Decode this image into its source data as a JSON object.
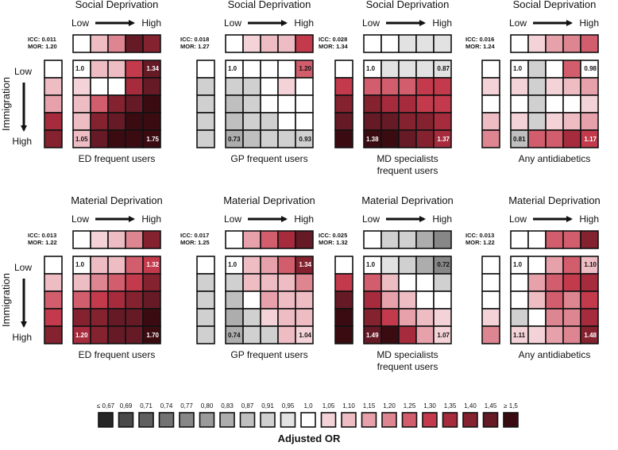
{
  "chart_data": {
    "type": "heatmap",
    "row_axis_label": "Immigration",
    "row_low_label": "Low",
    "row_high_label": "High",
    "col_low_label": "Low",
    "col_high_label": "High",
    "legend": {
      "title": "Adjusted OR",
      "labels": [
        "≤ 0,67",
        "0,69",
        "0,71",
        "0,74",
        "0,77",
        "0,80",
        "0,83",
        "0,87",
        "0,91",
        "0,95",
        "1,0",
        "1,05",
        "1,10",
        "1,15",
        "1,20",
        "1,25",
        "1,30",
        "1,35",
        "1,40",
        "1,45",
        "≥ 1,5"
      ],
      "colors": [
        "#262626",
        "#4a4a4a",
        "#5f5f5f",
        "#737373",
        "#878787",
        "#9a9a9a",
        "#adadad",
        "#bfbfbf",
        "#d0d0d0",
        "#e2e2e2",
        "#ffffff",
        "#f4d3d8",
        "#eebcc3",
        "#e6a1ab",
        "#dd8590",
        "#d25d6c",
        "#c33a4c",
        "#a62c3d",
        "#852230",
        "#651a26",
        "#3a0c12"
      ]
    },
    "panels": [
      {
        "deprivation": "Social Deprivation",
        "outcome": [
          "ED frequent users"
        ],
        "icc_label": "ICC:",
        "icc": "0.011",
        "mor_label": "MOR:",
        "mor": "1.20",
        "top": [
          10,
          12,
          14,
          19,
          18
        ],
        "left": [
          10,
          12,
          13,
          17,
          18
        ],
        "grid": [
          [
            10,
            12,
            12,
            16,
            19
          ],
          [
            11,
            10,
            10,
            17,
            19
          ],
          [
            12,
            15,
            18,
            19,
            20
          ],
          [
            12,
            18,
            19,
            20,
            20
          ],
          [
            12,
            19,
            20,
            20,
            20
          ]
        ],
        "labels": [
          {
            "r": 0,
            "c": 0,
            "t": "1.0"
          },
          {
            "r": 0,
            "c": 4,
            "t": "1.34"
          },
          {
            "r": 4,
            "c": 0,
            "t": "1.05"
          },
          {
            "r": 4,
            "c": 4,
            "t": "1.75"
          }
        ]
      },
      {
        "deprivation": "Social Deprivation",
        "outcome": [
          "GP frequent users"
        ],
        "icc_label": "ICC:",
        "icc": "0.018",
        "mor_label": "MOR:",
        "mor": "1.27",
        "top": [
          10,
          11,
          12,
          12,
          16
        ],
        "left": [
          10,
          8,
          8,
          8,
          8
        ],
        "grid": [
          [
            10,
            10,
            10,
            10,
            15
          ],
          [
            8,
            8,
            10,
            11,
            10
          ],
          [
            7,
            8,
            10,
            10,
            10
          ],
          [
            7,
            8,
            8,
            10,
            10
          ],
          [
            6,
            7,
            8,
            8,
            8
          ]
        ],
        "labels": [
          {
            "r": 0,
            "c": 0,
            "t": "1.0"
          },
          {
            "r": 0,
            "c": 4,
            "t": "1.20"
          },
          {
            "r": 4,
            "c": 0,
            "t": "0.73"
          },
          {
            "r": 4,
            "c": 4,
            "t": "0.93"
          }
        ]
      },
      {
        "deprivation": "Social Deprivation",
        "outcome": [
          "MD specialists",
          "frequent users"
        ],
        "icc_label": "ICC:",
        "icc": "0.028",
        "mor_label": "MOR:",
        "mor": "1.34",
        "top": [
          10,
          10,
          9,
          9,
          9
        ],
        "left": [
          10,
          16,
          18,
          19,
          20
        ],
        "grid": [
          [
            10,
            9,
            9,
            9,
            9
          ],
          [
            15,
            15,
            15,
            16,
            16
          ],
          [
            18,
            17,
            17,
            16,
            16
          ],
          [
            19,
            19,
            18,
            18,
            17
          ],
          [
            20,
            20,
            19,
            18,
            17
          ]
        ],
        "labels": [
          {
            "r": 0,
            "c": 0,
            "t": "1.0"
          },
          {
            "r": 0,
            "c": 4,
            "t": "0.87"
          },
          {
            "r": 4,
            "c": 0,
            "t": "1.38"
          },
          {
            "r": 4,
            "c": 4,
            "t": "1.37"
          }
        ]
      },
      {
        "deprivation": "Social Deprivation",
        "outcome": [
          "Any antidiabetics"
        ],
        "icc_label": "ICC:",
        "icc": "0.016",
        "mor_label": "MOR:",
        "mor": "1.24",
        "top": [
          10,
          11,
          13,
          14,
          15
        ],
        "left": [
          10,
          11,
          10,
          12,
          14
        ],
        "grid": [
          [
            10,
            8,
            10,
            15,
            10
          ],
          [
            11,
            8,
            11,
            12,
            13
          ],
          [
            10,
            8,
            10,
            10,
            11
          ],
          [
            11,
            8,
            11,
            12,
            13
          ],
          [
            7,
            15,
            15,
            17,
            16
          ]
        ],
        "labels": [
          {
            "r": 0,
            "c": 0,
            "t": "1.0"
          },
          {
            "r": 0,
            "c": 4,
            "t": "0.98"
          },
          {
            "r": 4,
            "c": 0,
            "t": "0.81"
          },
          {
            "r": 4,
            "c": 4,
            "t": "1.17"
          }
        ]
      },
      {
        "deprivation": "Material Deprivation",
        "outcome": [
          "ED frequent users"
        ],
        "icc_label": "ICC:",
        "icc": "0.013",
        "mor_label": "MOR:",
        "mor": "1.22",
        "top": [
          10,
          11,
          12,
          14,
          18
        ],
        "left": [
          10,
          12,
          15,
          16,
          18
        ],
        "grid": [
          [
            10,
            12,
            12,
            15,
            16
          ],
          [
            12,
            14,
            15,
            16,
            18
          ],
          [
            15,
            16,
            17,
            18,
            19
          ],
          [
            18,
            18,
            19,
            19,
            20
          ],
          [
            17,
            18,
            19,
            19,
            20
          ]
        ],
        "labels": [
          {
            "r": 0,
            "c": 0,
            "t": "1.0"
          },
          {
            "r": 0,
            "c": 4,
            "t": "1.32"
          },
          {
            "r": 4,
            "c": 0,
            "t": "1.20"
          },
          {
            "r": 4,
            "c": 4,
            "t": "1.70"
          }
        ]
      },
      {
        "deprivation": "Material Deprivation",
        "outcome": [
          "GP frequent users"
        ],
        "icc_label": "ICC:",
        "icc": "0.017",
        "mor_label": "MOR:",
        "mor": "1.25",
        "top": [
          10,
          13,
          15,
          17,
          19
        ],
        "left": [
          10,
          8,
          8,
          8,
          8
        ],
        "grid": [
          [
            10,
            12,
            13,
            15,
            18
          ],
          [
            8,
            12,
            12,
            12,
            14
          ],
          [
            7,
            10,
            13,
            12,
            12
          ],
          [
            6,
            8,
            11,
            12,
            12
          ],
          [
            6,
            8,
            8,
            12,
            11
          ]
        ],
        "labels": [
          {
            "r": 0,
            "c": 0,
            "t": "1.0"
          },
          {
            "r": 0,
            "c": 4,
            "t": "1.34"
          },
          {
            "r": 4,
            "c": 0,
            "t": "0.74"
          },
          {
            "r": 4,
            "c": 4,
            "t": "1.04"
          }
        ]
      },
      {
        "deprivation": "Material Deprivation",
        "outcome": [
          "MD specialists",
          "frequent users"
        ],
        "icc_label": "ICC:",
        "icc": "0.025",
        "mor_label": "MOR:",
        "mor": "1.32",
        "top": [
          10,
          8,
          8,
          6,
          4
        ],
        "left": [
          10,
          16,
          19,
          20,
          20
        ],
        "grid": [
          [
            10,
            9,
            8,
            6,
            4
          ],
          [
            15,
            12,
            10,
            10,
            8
          ],
          [
            17,
            13,
            12,
            10,
            10
          ],
          [
            18,
            16,
            13,
            12,
            11
          ],
          [
            19,
            20,
            17,
            13,
            11
          ]
        ],
        "labels": [
          {
            "r": 0,
            "c": 0,
            "t": "1.0"
          },
          {
            "r": 0,
            "c": 4,
            "t": "0.72"
          },
          {
            "r": 4,
            "c": 0,
            "t": "1.49"
          },
          {
            "r": 4,
            "c": 4,
            "t": "1.07"
          }
        ]
      },
      {
        "deprivation": "Material Deprivation",
        "outcome": [
          "Any antidiabetics"
        ],
        "icc_label": "ICC:",
        "icc": "0.013",
        "mor_label": "MOR:",
        "mor": "1.22",
        "top": [
          10,
          10,
          15,
          15,
          18
        ],
        "left": [
          10,
          10,
          10,
          11,
          14
        ],
        "grid": [
          [
            10,
            10,
            13,
            15,
            12
          ],
          [
            10,
            13,
            15,
            16,
            17
          ],
          [
            10,
            12,
            15,
            14,
            16
          ],
          [
            8,
            10,
            14,
            14,
            17
          ],
          [
            11,
            11,
            13,
            14,
            18
          ]
        ],
        "labels": [
          {
            "r": 0,
            "c": 0,
            "t": "1.0"
          },
          {
            "r": 0,
            "c": 4,
            "t": "1.10"
          },
          {
            "r": 4,
            "c": 0,
            "t": "1.11"
          },
          {
            "r": 4,
            "c": 4,
            "t": "1.48"
          }
        ]
      }
    ]
  }
}
